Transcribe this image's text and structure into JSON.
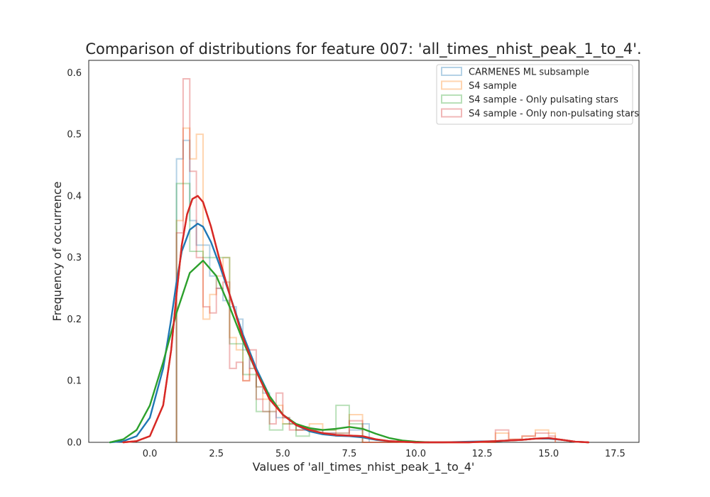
{
  "chart_data": {
    "type": "histogram",
    "title": "Comparison of distributions for feature 007: 'all_times_nhist_peak_1_to_4'.",
    "xlabel": "Values of 'all_times_nhist_peak_1_to_4'",
    "ylabel": "Frequency of occurrence",
    "xlim": [
      -2.3,
      18.4
    ],
    "ylim": [
      0,
      0.62
    ],
    "xticks": [
      0.0,
      2.5,
      5.0,
      7.5,
      10.0,
      12.5,
      15.0,
      17.5
    ],
    "xtick_labels": [
      "0.0",
      "2.5",
      "5.0",
      "7.5",
      "10.0",
      "12.5",
      "15.0",
      "17.5"
    ],
    "yticks": [
      0.0,
      0.1,
      0.2,
      0.3,
      0.4,
      0.5,
      0.6
    ],
    "ytick_labels": [
      "0.0",
      "0.1",
      "0.2",
      "0.3",
      "0.4",
      "0.5",
      "0.6"
    ],
    "grid": false,
    "legend_position": "upper right",
    "series": [
      {
        "name": "CARMENES ML subsample",
        "color": "#1f77b4",
        "hist": {
          "edges": [
            1.0,
            1.25,
            1.5,
            1.75,
            2.0,
            2.25,
            2.5,
            2.75,
            3.0,
            3.25,
            3.5,
            3.75,
            4.0,
            4.25,
            4.5,
            4.75,
            5.0,
            5.25,
            5.5,
            5.75,
            6.0,
            6.5,
            7.0,
            7.5,
            8.0,
            8.25
          ],
          "values": [
            0.46,
            0.49,
            0.36,
            0.32,
            0.32,
            0.27,
            0.25,
            0.23,
            0.22,
            0.2,
            0.15,
            0.12,
            0.09,
            0.08,
            0.05,
            0.04,
            0.04,
            0.03,
            0.02,
            0.02,
            0.02,
            0.015,
            0.015,
            0.02,
            0.03
          ]
        },
        "kde": {
          "x": [
            -1.5,
            -1.0,
            -0.5,
            0.0,
            0.5,
            0.8,
            1.0,
            1.2,
            1.5,
            1.8,
            2.0,
            2.3,
            2.6,
            3.0,
            3.5,
            4.0,
            4.5,
            5.0,
            5.5,
            6.0,
            6.5,
            7.0,
            7.5,
            8.0,
            8.5,
            9.0,
            10.0,
            11.0,
            12.0,
            13.0,
            14.0,
            14.5,
            15.0,
            15.5,
            16.0,
            16.5
          ],
          "y": [
            0.0,
            0.002,
            0.01,
            0.04,
            0.12,
            0.2,
            0.26,
            0.31,
            0.345,
            0.355,
            0.35,
            0.325,
            0.29,
            0.24,
            0.175,
            0.12,
            0.075,
            0.045,
            0.028,
            0.018,
            0.013,
            0.011,
            0.01,
            0.008,
            0.004,
            0.002,
            0.0,
            0.0,
            0.001,
            0.002,
            0.004,
            0.006,
            0.006,
            0.004,
            0.001,
            0.0
          ]
        }
      },
      {
        "name": "S4 sample",
        "color": "#ff7f0e",
        "hist": {
          "edges": [
            1.0,
            1.25,
            1.5,
            1.75,
            2.0,
            2.25,
            2.5,
            2.75,
            3.0,
            3.25,
            3.5,
            3.75,
            4.0,
            4.25,
            4.5,
            4.75,
            5.0,
            5.25,
            5.5,
            5.75,
            6.0,
            6.5,
            7.0,
            7.5,
            8.0,
            13.0,
            13.5,
            14.0,
            14.5,
            15.0,
            15.25
          ],
          "values": [
            0.36,
            0.51,
            0.46,
            0.5,
            0.2,
            0.24,
            0.27,
            0.3,
            0.17,
            0.15,
            0.1,
            0.12,
            0.09,
            0.07,
            0.05,
            0.06,
            0.03,
            0.03,
            0.02,
            0.025,
            0.03,
            0.02,
            0.015,
            0.045,
            0.0,
            0.015,
            0.005,
            0.01,
            0.02,
            0.015
          ]
        },
        "kde": {
          "x": [
            -1.0,
            -0.5,
            0.0,
            0.5,
            0.8,
            1.0,
            1.2,
            1.4,
            1.6,
            1.8,
            2.0,
            2.3,
            2.6,
            3.0,
            3.5,
            4.0,
            4.5,
            5.0,
            5.5,
            6.0,
            6.5,
            7.0,
            7.5,
            8.0,
            8.5,
            9.0,
            10.0,
            12.0,
            13.0,
            14.0,
            14.5,
            15.0,
            15.5,
            16.0,
            16.5
          ],
          "y": [
            0.0,
            0.002,
            0.01,
            0.06,
            0.15,
            0.24,
            0.32,
            0.37,
            0.395,
            0.4,
            0.39,
            0.35,
            0.3,
            0.24,
            0.17,
            0.115,
            0.07,
            0.045,
            0.028,
            0.02,
            0.015,
            0.012,
            0.011,
            0.01,
            0.005,
            0.002,
            0.0,
            0.0,
            0.002,
            0.004,
            0.006,
            0.007,
            0.004,
            0.001,
            0.0
          ]
        }
      },
      {
        "name": "S4 sample - Only pulsating stars",
        "color": "#2ca02c",
        "hist": {
          "edges": [
            1.0,
            1.5,
            2.0,
            2.5,
            3.0,
            3.5,
            4.0,
            4.5,
            5.0,
            5.5,
            6.0,
            7.0,
            7.5,
            8.0
          ],
          "values": [
            0.42,
            0.31,
            0.3,
            0.3,
            0.16,
            0.11,
            0.05,
            0.02,
            0.03,
            0.01,
            0.02,
            0.06,
            0.03
          ]
        },
        "kde": {
          "x": [
            -1.5,
            -1.0,
            -0.5,
            0.0,
            0.5,
            1.0,
            1.5,
            2.0,
            2.5,
            3.0,
            3.5,
            4.0,
            4.5,
            5.0,
            5.5,
            6.0,
            6.5,
            7.0,
            7.5,
            8.0,
            8.5,
            9.0,
            9.5,
            10.0,
            10.5
          ],
          "y": [
            0.0,
            0.005,
            0.02,
            0.06,
            0.13,
            0.21,
            0.275,
            0.295,
            0.27,
            0.22,
            0.165,
            0.115,
            0.075,
            0.045,
            0.03,
            0.023,
            0.02,
            0.022,
            0.025,
            0.022,
            0.014,
            0.007,
            0.003,
            0.001,
            0.0
          ]
        }
      },
      {
        "name": "S4 sample - Only non-pulsating stars",
        "color": "#d62728",
        "hist": {
          "edges": [
            1.0,
            1.25,
            1.5,
            1.75,
            2.0,
            2.25,
            2.5,
            2.75,
            3.0,
            3.25,
            3.5,
            3.75,
            4.0,
            4.25,
            4.5,
            4.75,
            5.0,
            5.25,
            5.5,
            5.75,
            6.0,
            6.5,
            7.0,
            7.5,
            8.0,
            13.0,
            13.5,
            14.0,
            14.5,
            15.0,
            15.25
          ],
          "values": [
            0.34,
            0.59,
            0.44,
            0.3,
            0.22,
            0.21,
            0.25,
            0.26,
            0.12,
            0.13,
            0.1,
            0.15,
            0.07,
            0.05,
            0.03,
            0.08,
            0.04,
            0.02,
            0.02,
            0.02,
            0.02,
            0.015,
            0.01,
            0.035,
            0.0,
            0.02,
            0.005,
            0.01,
            0.015,
            0.01
          ]
        },
        "kde": {
          "x": [
            -1.0,
            -0.5,
            0.0,
            0.5,
            0.8,
            1.0,
            1.2,
            1.4,
            1.6,
            1.8,
            2.0,
            2.3,
            2.6,
            3.0,
            3.5,
            4.0,
            4.5,
            5.0,
            5.5,
            6.0,
            6.5,
            7.0,
            7.5,
            8.0,
            8.5,
            9.0,
            10.0,
            12.0,
            13.0,
            14.0,
            14.5,
            15.0,
            15.5,
            16.0,
            16.5
          ],
          "y": [
            0.0,
            0.002,
            0.01,
            0.06,
            0.15,
            0.24,
            0.32,
            0.37,
            0.395,
            0.4,
            0.39,
            0.35,
            0.3,
            0.24,
            0.17,
            0.115,
            0.07,
            0.045,
            0.028,
            0.02,
            0.015,
            0.012,
            0.011,
            0.01,
            0.005,
            0.002,
            0.0,
            0.0,
            0.002,
            0.004,
            0.006,
            0.007,
            0.004,
            0.001,
            0.0
          ]
        }
      }
    ]
  }
}
